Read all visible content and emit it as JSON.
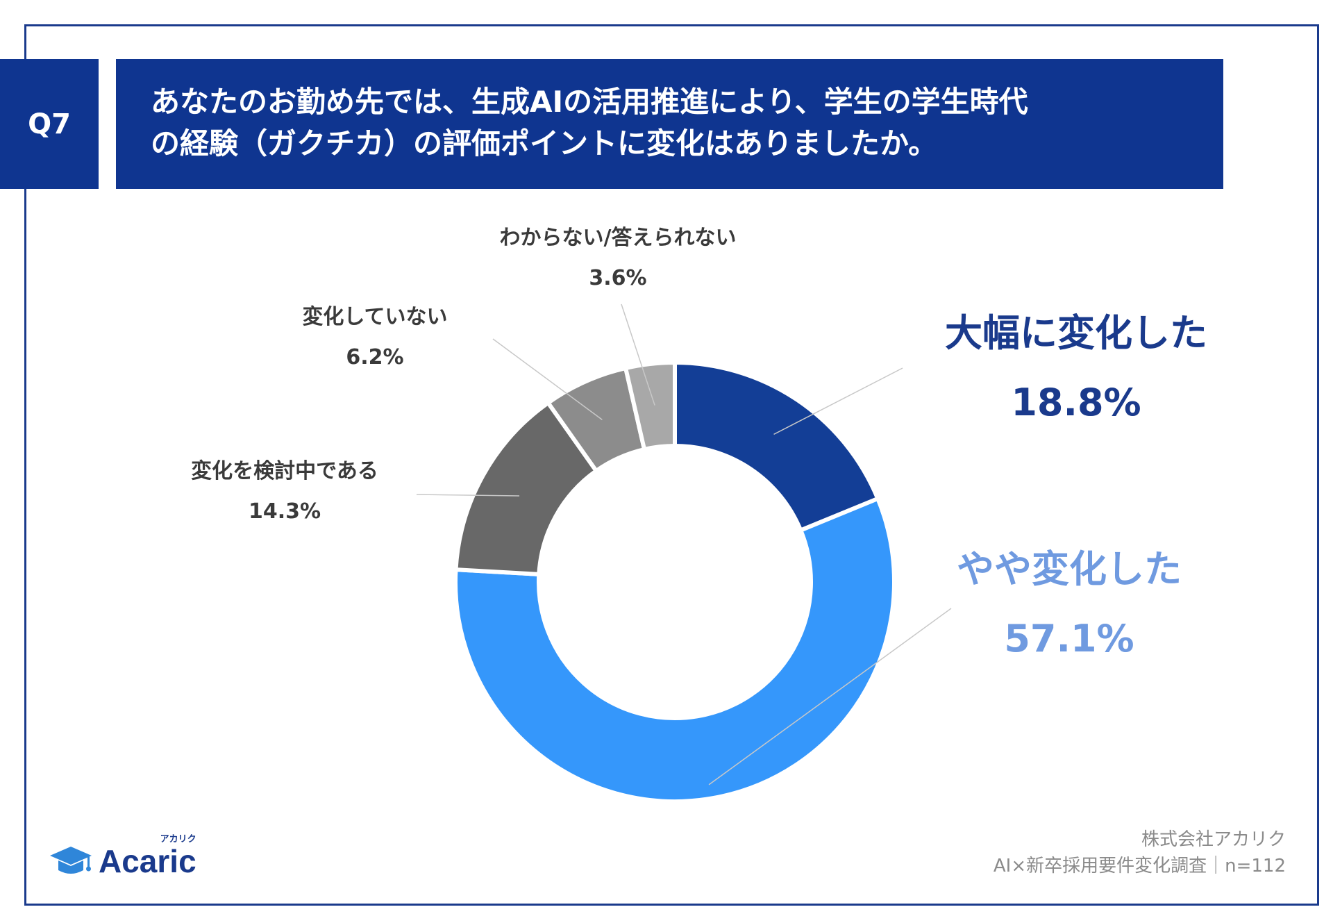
{
  "header": {
    "question_no": "Q7",
    "title_line1": "あなたのお勤め先では、生成AIの活用推進により、学生の学生時代",
    "title_line2": "の経験（ガクチカ）の評価ポイントに変化はありましたか。"
  },
  "chart_data": {
    "type": "pie",
    "donut": true,
    "categories": [
      "大幅に変化した",
      "やや変化した",
      "変化を検討中である",
      "変化していない",
      "わからない/答えられない"
    ],
    "values": [
      18.8,
      57.1,
      14.3,
      6.2,
      3.6
    ],
    "value_labels": [
      "18.8%",
      "57.1%",
      "14.3%",
      "6.2%",
      "3.6%"
    ],
    "colors": [
      "#133e96",
      "#3597fb",
      "#686868",
      "#8c8c8c",
      "#a8a8a8"
    ],
    "label_colors": [
      "#1a3a8c",
      "#6f9ae0",
      "#3a3a3a",
      "#3a3a3a",
      "#3a3a3a"
    ]
  },
  "footer": {
    "company": "株式会社アカリク",
    "survey": "AI×新卒採用要件変化調査｜n=112"
  },
  "logo": {
    "name": "Acaric",
    "kana": "アカリク",
    "icon": "graduation-cap-icon"
  }
}
